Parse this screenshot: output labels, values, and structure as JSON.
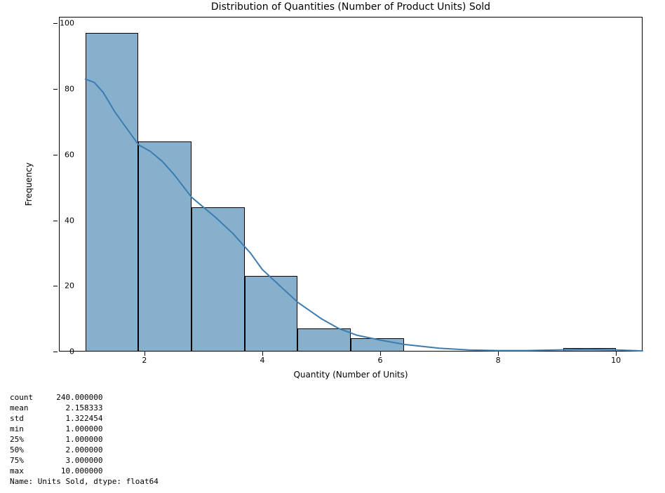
{
  "chart": {
    "type": "histogram",
    "title": "Distribution of Quantities (Number of Product Units) Sold",
    "xlabel": "Quantity (Number of Units)",
    "ylabel": "Frequency",
    "title_fontsize": 14,
    "label_fontsize": 12,
    "tick_fontsize": 11,
    "background_color": "#ffffff",
    "bar_fill_color": "#87b0cd",
    "bar_edge_color": "#000000",
    "kde_color": "#3b7cb1",
    "kde_linewidth": 2,
    "xlim": [
      0.55,
      10.45
    ],
    "ylim": [
      0,
      102
    ],
    "xticks": [
      2,
      4,
      6,
      8,
      10
    ],
    "yticks": [
      0,
      20,
      40,
      60,
      80,
      100
    ],
    "bin_edges": [
      1.0,
      1.9,
      2.8,
      3.7,
      4.6,
      5.5,
      6.4,
      7.3,
      8.2,
      9.1,
      10.0
    ],
    "frequencies": [
      97,
      64,
      44,
      23,
      7,
      4,
      0,
      0,
      0,
      1
    ],
    "kde_points": [
      [
        1.0,
        83
      ],
      [
        1.15,
        82
      ],
      [
        1.3,
        79
      ],
      [
        1.5,
        73
      ],
      [
        1.7,
        68
      ],
      [
        1.9,
        63
      ],
      [
        2.1,
        61
      ],
      [
        2.3,
        58
      ],
      [
        2.5,
        54
      ],
      [
        2.8,
        47
      ],
      [
        3.0,
        44
      ],
      [
        3.2,
        41
      ],
      [
        3.5,
        36
      ],
      [
        3.8,
        30
      ],
      [
        4.0,
        25
      ],
      [
        4.3,
        20
      ],
      [
        4.6,
        15
      ],
      [
        5.0,
        10
      ],
      [
        5.3,
        7
      ],
      [
        5.6,
        5
      ],
      [
        6.0,
        3.5
      ],
      [
        6.4,
        2.2
      ],
      [
        7.0,
        1.0
      ],
      [
        7.5,
        0.5
      ],
      [
        8.0,
        0.3
      ],
      [
        8.5,
        0.3
      ],
      [
        9.0,
        0.5
      ],
      [
        9.5,
        0.7
      ],
      [
        10.0,
        0.5
      ],
      [
        10.45,
        0.2
      ]
    ]
  },
  "stats": {
    "lines": [
      "count     240.000000",
      "mean        2.158333",
      "std         1.322454",
      "min         1.000000",
      "25%         1.000000",
      "50%         2.000000",
      "75%         3.000000",
      "max        10.000000",
      "Name: Units Sold, dtype: float64"
    ]
  }
}
